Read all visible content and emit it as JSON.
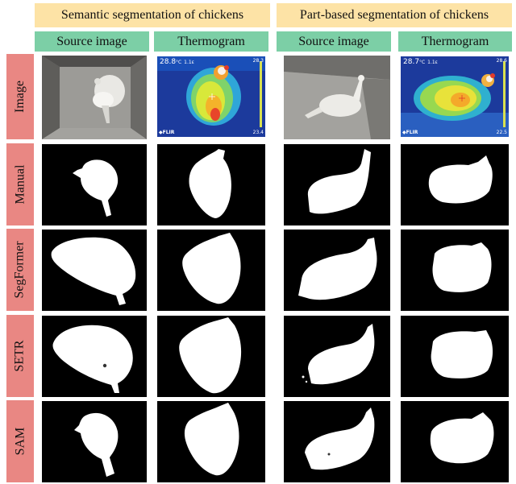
{
  "group_headers": [
    "Semantic segmentation of chickens",
    "Part-based segmentation of chickens"
  ],
  "column_headers": [
    "Source image",
    "Thermogram",
    "Source image",
    "Thermogram"
  ],
  "row_labels": [
    "Image",
    "Manual",
    "SegFormer",
    "SETR",
    "SAM"
  ],
  "thermo_readouts": [
    {
      "temp": "28.8",
      "unit": "°C",
      "emiss": "1.1ε",
      "max": "28.3",
      "min": "23.4",
      "brand": "FLIR"
    },
    {
      "temp": "28.7",
      "unit": "°C",
      "emiss": "1.1ε",
      "max": "28.6",
      "min": "22.5",
      "brand": "FLIR"
    }
  ],
  "colors": {
    "group_header": "#fde3a6",
    "column_header": "#7ccfa6",
    "row_label": "#e98783",
    "mask_bg": "#000000",
    "mask_fg": "#ffffff"
  }
}
